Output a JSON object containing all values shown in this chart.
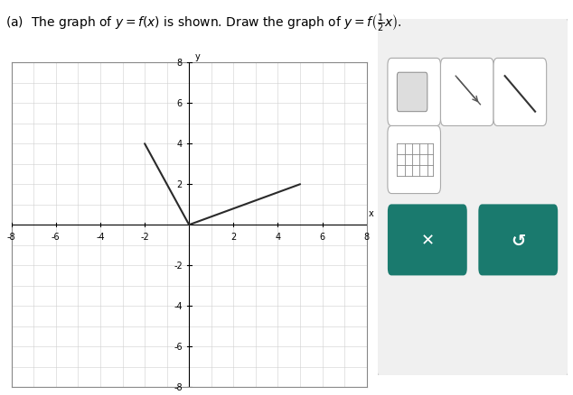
{
  "title": "(a)  The graph of $y=f(x)$ is shown. Draw the graph of $y=f\\left(\\frac{1}{2}x\\right)$.",
  "title_fontsize": 10,
  "xlim": [
    -8,
    8
  ],
  "ylim": [
    -8,
    8
  ],
  "xtick_labels": [
    "-8",
    "-6",
    "-4",
    "-2",
    "2",
    "4",
    "6",
    "8"
  ],
  "xtick_vals": [
    -8,
    -6,
    -4,
    -2,
    2,
    4,
    6,
    8
  ],
  "ytick_labels": [
    "8",
    "6",
    "4",
    "2",
    "-2",
    "-4",
    "-6",
    "-8"
  ],
  "ytick_vals": [
    8,
    6,
    4,
    2,
    -2,
    -4,
    -6,
    -8
  ],
  "tick_fontsize": 7,
  "grid_color": "#d0d0d0",
  "axis_color": "#000000",
  "line_color": "#2a2a2a",
  "line_width": 1.5,
  "plot_bg_color": "#ffffff",
  "fx_points": [
    [
      -2,
      4
    ],
    [
      0,
      0
    ],
    [
      5,
      2
    ]
  ],
  "xlabel": "x",
  "ylabel": "y",
  "figure_bg": "#ffffff",
  "panel_bg": "#f0f0f0",
  "teal_color": "#1a7a6e",
  "icon_bg": "#ffffff",
  "icon_border": "#aaaaaa"
}
